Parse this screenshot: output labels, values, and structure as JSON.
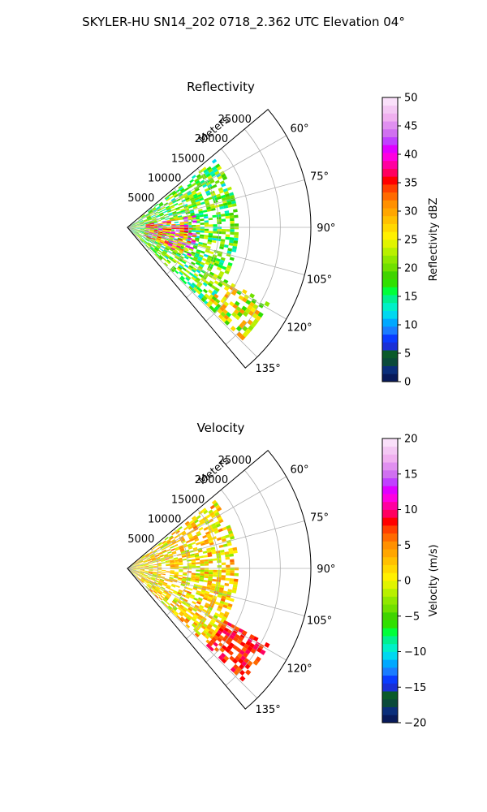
{
  "figure": {
    "suptitle": "SKYLER-HU  SN14_202  0718_2.362 UTC Elevation 04°"
  },
  "chart_data": [
    {
      "type": "heatmap",
      "subtype": "polar-sector-radar",
      "title": "Reflectivity",
      "range_axis_label": "Meters",
      "range_ticks": [
        5000,
        10000,
        15000,
        20000,
        25000
      ],
      "range_tick_labels": [
        "5000",
        "10000",
        "15000",
        "20000",
        "25000"
      ],
      "range_max": 30000,
      "azimuth_range_deg": [
        50,
        140
      ],
      "azimuth_ticks_deg": [
        60,
        75,
        90,
        105,
        120,
        135
      ],
      "azimuth_tick_labels": [
        "60°",
        "75°",
        "90°",
        "105°",
        "120°",
        "135°"
      ],
      "grid": true,
      "colorbar": {
        "label": "Reflectivity dBZ",
        "range": [
          0,
          50
        ],
        "ticks": [
          0,
          5,
          10,
          15,
          20,
          25,
          30,
          35,
          40,
          45,
          50
        ],
        "tick_labels": [
          "0",
          "5",
          "10",
          "15",
          "20",
          "25",
          "30",
          "35",
          "40",
          "45",
          "50"
        ],
        "colors": [
          "#081a5a",
          "#0a2e7a",
          "#0a4a3a",
          "#0a5a2a",
          "#1a2fd6",
          "#0a3cff",
          "#1a7cff",
          "#00a8ff",
          "#00d8f0",
          "#00f0c8",
          "#00f090",
          "#00ff3a",
          "#30e000",
          "#40d400",
          "#70e000",
          "#90e800",
          "#b8f000",
          "#e0f400",
          "#fff000",
          "#ffd800",
          "#ffc000",
          "#ffa600",
          "#ff9000",
          "#ff6a00",
          "#ff4000",
          "#ff0000",
          "#ff0060",
          "#ff00a0",
          "#ff00e0",
          "#e000ff",
          "#c040ff",
          "#d070f0",
          "#e090f0",
          "#f0b0f0",
          "#f4c8f4",
          "#fae0fa"
        ]
      },
      "echo_regions": [
        {
          "az": [
            52,
            134
          ],
          "r": [
            0,
            18000
          ],
          "value_range": [
            12,
            25
          ]
        },
        {
          "az": [
            80,
            115
          ],
          "r": [
            3000,
            11000
          ],
          "value_range": [
            22,
            46
          ]
        },
        {
          "az": [
            118,
            134
          ],
          "r": [
            18000,
            26000
          ],
          "value_range": [
            15,
            32
          ]
        }
      ]
    },
    {
      "type": "heatmap",
      "subtype": "polar-sector-radar",
      "title": "Velocity",
      "range_axis_label": "Meters",
      "range_ticks": [
        5000,
        10000,
        15000,
        20000,
        25000
      ],
      "range_tick_labels": [
        "5000",
        "10000",
        "15000",
        "20000",
        "25000"
      ],
      "range_max": 30000,
      "azimuth_range_deg": [
        50,
        140
      ],
      "azimuth_ticks_deg": [
        60,
        75,
        90,
        105,
        120,
        135
      ],
      "azimuth_tick_labels": [
        "60°",
        "75°",
        "90°",
        "105°",
        "120°",
        "135°"
      ],
      "grid": true,
      "colorbar": {
        "label": "Velocity (m/s)",
        "range": [
          -20,
          20
        ],
        "ticks": [
          -20,
          -15,
          -10,
          -5,
          0,
          5,
          10,
          15,
          20
        ],
        "tick_labels": [
          "−20",
          "−15",
          "−10",
          "−5",
          "0",
          "5",
          "10",
          "15",
          "20"
        ],
        "colors": [
          "#081a5a",
          "#0a2e7a",
          "#0a4a3a",
          "#0a5a2a",
          "#1a2fd6",
          "#0a3cff",
          "#1a7cff",
          "#00a8ff",
          "#00d8f0",
          "#00f0c8",
          "#00f090",
          "#00ff3a",
          "#30e000",
          "#40d400",
          "#70e000",
          "#90e800",
          "#b8f000",
          "#e0f400",
          "#fff000",
          "#ffd800",
          "#ffc000",
          "#ffa600",
          "#ff9000",
          "#ff6a00",
          "#ff4000",
          "#ff0000",
          "#ff0060",
          "#ff00a0",
          "#ff00e0",
          "#e000ff",
          "#c040ff",
          "#d070f0",
          "#e090f0",
          "#f0b0f0",
          "#f4c8f4",
          "#fae0fa"
        ]
      },
      "echo_regions": [
        {
          "az": [
            52,
            134
          ],
          "r": [
            0,
            18000
          ],
          "value_range": [
            -3,
            6
          ]
        },
        {
          "az": [
            118,
            134
          ],
          "r": [
            18000,
            26000
          ],
          "value_range": [
            6,
            10
          ]
        }
      ]
    }
  ]
}
